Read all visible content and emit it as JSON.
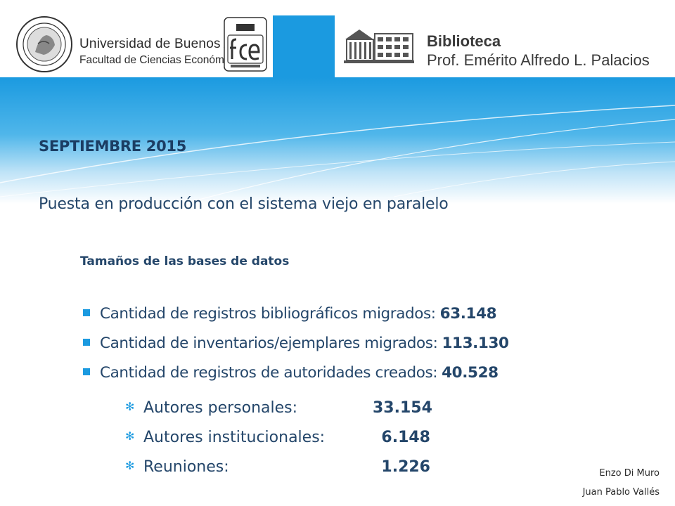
{
  "header": {
    "university_line1": "Universidad de Buenos Aires",
    "university_line2": "Facultad de Ciencias Económicas",
    "library_line1": "Biblioteca",
    "library_line2": "Prof. Emérito Alfredo L. Palacios",
    "logos": [
      "uba-seal-icon",
      "fce-logo-icon",
      "library-building-icon"
    ]
  },
  "colors": {
    "accent": "#1b9ae0",
    "text": "#24466a",
    "title": "#1b3d63"
  },
  "slide": {
    "title": "SEPTIEMBRE 2015",
    "subtitle": "Puesta en producción con el sistema viejo en paralelo",
    "section": "Tamaños de las bases de datos",
    "items": [
      {
        "label": "Cantidad de registros bibliográficos migrados:",
        "value": "63.148"
      },
      {
        "label": "Cantidad de inventarios/ejemplares migrados:",
        "value": "113.130"
      },
      {
        "label": "Cantidad de registros de autoridades creados:",
        "value": "40.528"
      }
    ],
    "subitems": [
      {
        "label": "Autores personales:",
        "value": "33.154"
      },
      {
        "label": "Autores institucionales:",
        "value": "6.148"
      },
      {
        "label": "Reuniones:",
        "value": "1.226"
      }
    ],
    "authors": [
      "Enzo Di Muro",
      "Juan Pablo Vallés"
    ]
  }
}
